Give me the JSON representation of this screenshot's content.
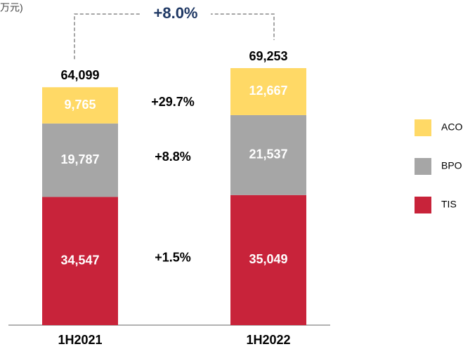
{
  "chart_data": {
    "type": "stacked_bar",
    "unit": "万元)",
    "categories": [
      "1H2021",
      "1H2022"
    ],
    "series": [
      {
        "name": "TIS",
        "color": "#c8233a",
        "values": [
          34547,
          35049
        ],
        "value_labels": [
          "34,547",
          "35,049"
        ],
        "change": "+1.5%"
      },
      {
        "name": "BPO",
        "color": "#a6a6a6",
        "values": [
          19787,
          21537
        ],
        "value_labels": [
          "19,787",
          "21,537"
        ],
        "change": "+8.8%"
      },
      {
        "name": "ACO",
        "color": "#ffd966",
        "values": [
          9765,
          12667
        ],
        "value_labels": [
          "9,765",
          "12,667"
        ],
        "change": "+29.7%"
      }
    ],
    "totals": [
      64099,
      69253
    ],
    "total_labels": [
      "64,099",
      "69,253"
    ],
    "total_change": "+8.0%",
    "legend": "right"
  }
}
